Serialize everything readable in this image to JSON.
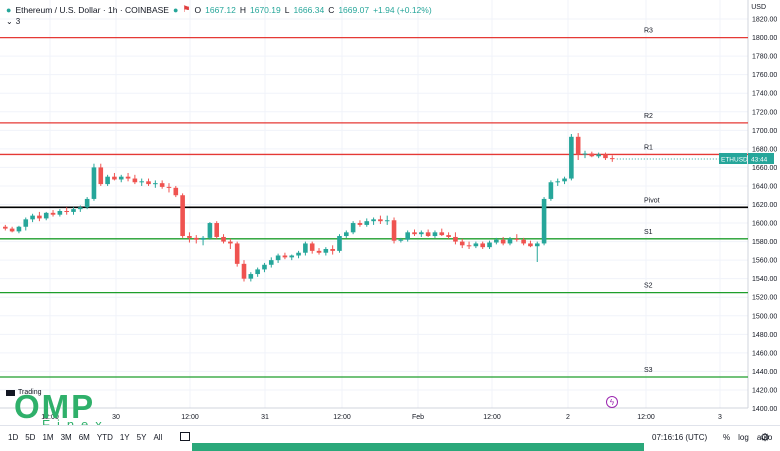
{
  "legend": {
    "symbol": "Ethereum / U.S. Dollar · 1h · COINBASE",
    "o_label": "O",
    "o": "1667.12",
    "h_label": "H",
    "h": "1670.19",
    "l_label": "L",
    "l": "1666.34",
    "c_label": "C",
    "c": "1669.07",
    "change": "+1.94 (+0.12%)",
    "indicators": "3"
  },
  "currency": "USD",
  "price_label": {
    "symbol": "ETHUSD",
    "countdown": "43:44",
    "value": 1669.07
  },
  "y_axis": {
    "min": 1400,
    "max": 1840,
    "step": 20,
    "format": "0.00"
  },
  "x_axis_labels": [
    "12:00",
    "30",
    "12:00",
    "31",
    "12:00",
    "Feb",
    "12:00",
    "2",
    "12:00",
    "3"
  ],
  "levels": [
    {
      "name": "R3",
      "value": 1800,
      "color": "#e53935"
    },
    {
      "name": "R2",
      "value": 1708,
      "color": "#e53935"
    },
    {
      "name": "R1",
      "value": 1674,
      "color": "#e53935"
    },
    {
      "name": "Pivot",
      "value": 1617,
      "color": "#000000"
    },
    {
      "name": "S1",
      "value": 1583,
      "color": "#1e9e2b"
    },
    {
      "name": "S2",
      "value": 1525,
      "color": "#1e9e2b"
    },
    {
      "name": "S3",
      "value": 1434,
      "color": "#1e9e2b"
    }
  ],
  "bottom": {
    "ranges": [
      "1D",
      "5D",
      "1M",
      "3M",
      "6M",
      "YTD",
      "1Y",
      "5Y",
      "All"
    ],
    "clock": "07:16:16 (UTC)",
    "percent": "%",
    "log": "log",
    "auto": "auto"
  },
  "watermark": {
    "brand": "OMP",
    "sub": "Finex"
  },
  "tv_logo": "Trading",
  "colors": {
    "up": "#26a69a",
    "down": "#ef5350",
    "accent": "#2aa87a"
  },
  "chart_data": {
    "type": "candlestick",
    "interval": "1h",
    "up_color": "#26a69a",
    "down_color": "#ef5350",
    "candles": [
      [
        1596,
        1598,
        1592,
        1594
      ],
      [
        1594,
        1596,
        1590,
        1591
      ],
      [
        1591,
        1597,
        1589,
        1596
      ],
      [
        1596,
        1606,
        1592,
        1604
      ],
      [
        1604,
        1610,
        1601,
        1608
      ],
      [
        1608,
        1612,
        1602,
        1605
      ],
      [
        1605,
        1612,
        1603,
        1611
      ],
      [
        1611,
        1614,
        1607,
        1609
      ],
      [
        1609,
        1615,
        1607,
        1613
      ],
      [
        1613,
        1617,
        1609,
        1612
      ],
      [
        1612,
        1617,
        1609,
        1615
      ],
      [
        1615,
        1619,
        1612,
        1617
      ],
      [
        1617,
        1628,
        1615,
        1626
      ],
      [
        1626,
        1664,
        1624,
        1660
      ],
      [
        1660,
        1664,
        1640,
        1642
      ],
      [
        1642,
        1652,
        1640,
        1650
      ],
      [
        1650,
        1654,
        1646,
        1647
      ],
      [
        1647,
        1652,
        1644,
        1650
      ],
      [
        1650,
        1654,
        1645,
        1648
      ],
      [
        1648,
        1652,
        1642,
        1644
      ],
      [
        1644,
        1648,
        1640,
        1645
      ],
      [
        1645,
        1648,
        1640,
        1642
      ],
      [
        1642,
        1646,
        1638,
        1643
      ],
      [
        1643,
        1646,
        1637,
        1639
      ],
      [
        1639,
        1643,
        1633,
        1638
      ],
      [
        1638,
        1640,
        1628,
        1630
      ],
      [
        1630,
        1632,
        1584,
        1586
      ],
      [
        1586,
        1590,
        1579,
        1584
      ],
      [
        1584,
        1587,
        1578,
        1582
      ],
      [
        1582,
        1586,
        1576,
        1584
      ],
      [
        1584,
        1601,
        1582,
        1600
      ],
      [
        1600,
        1602,
        1583,
        1585
      ],
      [
        1585,
        1588,
        1578,
        1580
      ],
      [
        1580,
        1583,
        1572,
        1578
      ],
      [
        1578,
        1580,
        1553,
        1556
      ],
      [
        1556,
        1560,
        1537,
        1540
      ],
      [
        1540,
        1547,
        1537,
        1545
      ],
      [
        1545,
        1552,
        1542,
        1550
      ],
      [
        1550,
        1557,
        1547,
        1555
      ],
      [
        1555,
        1563,
        1552,
        1560
      ],
      [
        1560,
        1567,
        1557,
        1565
      ],
      [
        1565,
        1568,
        1561,
        1563
      ],
      [
        1563,
        1566,
        1560,
        1565
      ],
      [
        1565,
        1570,
        1562,
        1568
      ],
      [
        1568,
        1580,
        1565,
        1578
      ],
      [
        1578,
        1580,
        1567,
        1570
      ],
      [
        1570,
        1573,
        1566,
        1568
      ],
      [
        1568,
        1574,
        1565,
        1572
      ],
      [
        1572,
        1576,
        1566,
        1570
      ],
      [
        1570,
        1588,
        1568,
        1586
      ],
      [
        1586,
        1592,
        1584,
        1590
      ],
      [
        1590,
        1602,
        1588,
        1600
      ],
      [
        1600,
        1603,
        1596,
        1598
      ],
      [
        1598,
        1605,
        1596,
        1602
      ],
      [
        1602,
        1606,
        1598,
        1604
      ],
      [
        1604,
        1608,
        1599,
        1602
      ],
      [
        1602,
        1608,
        1598,
        1603
      ],
      [
        1603,
        1606,
        1578,
        1581
      ],
      [
        1581,
        1584,
        1579,
        1582
      ],
      [
        1582,
        1592,
        1580,
        1590
      ],
      [
        1590,
        1593,
        1586,
        1588
      ],
      [
        1588,
        1592,
        1585,
        1590
      ],
      [
        1590,
        1593,
        1585,
        1586
      ],
      [
        1586,
        1592,
        1584,
        1590
      ],
      [
        1590,
        1594,
        1586,
        1587
      ],
      [
        1587,
        1590,
        1583,
        1585
      ],
      [
        1585,
        1590,
        1577,
        1580
      ],
      [
        1580,
        1583,
        1573,
        1576
      ],
      [
        1576,
        1580,
        1572,
        1575
      ],
      [
        1575,
        1580,
        1573,
        1578
      ],
      [
        1578,
        1580,
        1572,
        1574
      ],
      [
        1574,
        1581,
        1572,
        1579
      ],
      [
        1579,
        1584,
        1577,
        1582
      ],
      [
        1582,
        1585,
        1576,
        1578
      ],
      [
        1578,
        1585,
        1576,
        1583
      ],
      [
        1583,
        1588,
        1580,
        1582
      ],
      [
        1582,
        1584,
        1576,
        1578
      ],
      [
        1578,
        1581,
        1574,
        1575
      ],
      [
        1575,
        1580,
        1558,
        1578
      ],
      [
        1578,
        1628,
        1576,
        1626
      ],
      [
        1626,
        1646,
        1624,
        1644
      ],
      [
        1644,
        1648,
        1640,
        1645
      ],
      [
        1645,
        1650,
        1642,
        1648
      ],
      [
        1648,
        1696,
        1646,
        1693
      ],
      [
        1693,
        1697,
        1668,
        1674
      ],
      [
        1674,
        1678,
        1670,
        1675
      ],
      [
        1675,
        1677,
        1671,
        1672
      ],
      [
        1672,
        1676,
        1670,
        1674
      ],
      [
        1674,
        1676,
        1668,
        1670
      ],
      [
        1670,
        1673,
        1666,
        1669
      ]
    ]
  }
}
